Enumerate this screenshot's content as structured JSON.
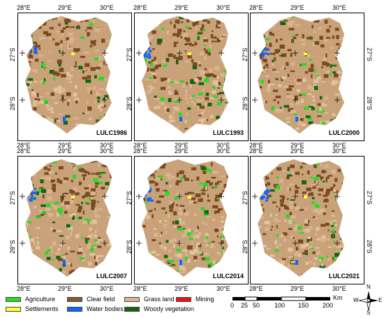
{
  "panels": [
    {
      "label": "LULC1986",
      "x": [
        "28°E",
        "29°E",
        "30°E"
      ],
      "y": [
        "27°S",
        "28°S"
      ]
    },
    {
      "label": "LULC1993",
      "x": [
        "28°E",
        "29°E",
        "30°E"
      ],
      "y": [
        "27°S",
        "28°S"
      ]
    },
    {
      "label": "LULC2000",
      "x": [
        "28°E",
        "29°E",
        "30°E"
      ],
      "y": [
        "27°S",
        "28°S"
      ]
    },
    {
      "label": "LULC2007",
      "x": [
        "28°E",
        "29°E",
        "30°E"
      ],
      "y": [
        "27°S",
        "28°S"
      ]
    },
    {
      "label": "LULC2014",
      "x": [
        "28°E",
        "29°E",
        "30°E"
      ],
      "y": [
        "27°S",
        "28°S"
      ]
    },
    {
      "label": "LULC2021",
      "x": [
        "28°E",
        "29°E",
        "30°E"
      ],
      "y": [
        "27°S",
        "28°S"
      ]
    }
  ],
  "legend": [
    {
      "label": "Agriculture",
      "color": "#22dd22"
    },
    {
      "label": "Clear field",
      "color": "#8b5a2b"
    },
    {
      "label": "Grass land",
      "color": "#d9b58e"
    },
    {
      "label": "Mining",
      "color": "#ee1111"
    },
    {
      "label": "Settlements",
      "color": "#ffff33"
    },
    {
      "label": "Water bodies",
      "color": "#1166ff"
    },
    {
      "label": "Woody vegetation",
      "color": "#116611"
    }
  ],
  "scale": {
    "ticks": [
      "0",
      "25",
      "50",
      "100",
      "150",
      "200"
    ],
    "unit": "Km"
  },
  "north_arrow": {
    "n": "N",
    "s": "S",
    "e": "E",
    "w": "W"
  }
}
